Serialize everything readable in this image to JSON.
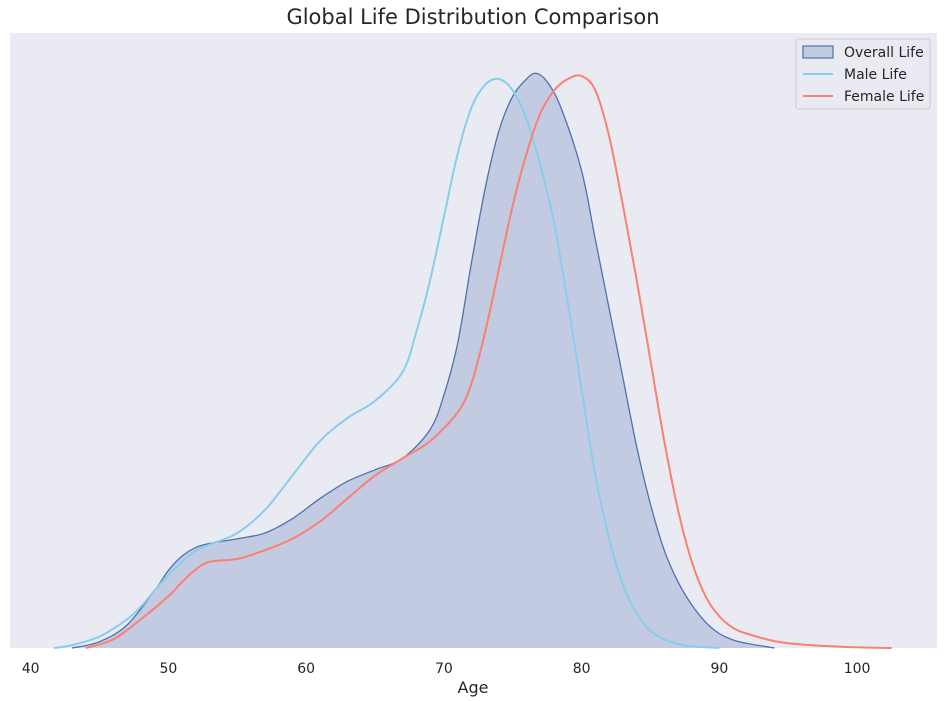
{
  "chart_data": {
    "type": "area",
    "title": "Global Life Distribution Comparison",
    "xlabel": "Age",
    "ylabel": "",
    "xlim": [
      38.5,
      105.8
    ],
    "ylim": [
      0,
      1.07
    ],
    "xticks": [
      40,
      50,
      60,
      70,
      80,
      90,
      100
    ],
    "grid": false,
    "legend": "top-right",
    "colors": {
      "background": "#eaeaf2",
      "overall_fill": "#c3cbe3",
      "overall_line": "#4c72b0",
      "male": "#87ceeb",
      "female": "#fa8072"
    },
    "series": [
      {
        "name": "Overall Life",
        "style": "filled",
        "x": [
          43,
          45,
          47,
          49,
          50,
          51,
          52,
          53,
          55,
          57,
          59,
          61,
          63,
          65,
          67,
          69,
          70,
          71,
          72,
          73,
          74,
          75,
          76,
          76.7,
          77.5,
          78.5,
          80,
          81,
          82,
          83,
          84,
          85,
          86,
          87,
          88,
          89,
          90,
          91,
          92,
          94
        ],
        "y": [
          0.0,
          0.011,
          0.04,
          0.1,
          0.135,
          0.16,
          0.175,
          0.182,
          0.19,
          0.2,
          0.225,
          0.26,
          0.29,
          0.31,
          0.33,
          0.38,
          0.44,
          0.53,
          0.67,
          0.8,
          0.9,
          0.96,
          0.99,
          1.0,
          0.985,
          0.94,
          0.83,
          0.71,
          0.59,
          0.47,
          0.35,
          0.25,
          0.17,
          0.115,
          0.075,
          0.045,
          0.025,
          0.014,
          0.008,
          0.0
        ]
      },
      {
        "name": "Male Life",
        "style": "line",
        "x": [
          41.7,
          43,
          45,
          47,
          48,
          49,
          50,
          51,
          52,
          53,
          55,
          57,
          59,
          61,
          63,
          65,
          67,
          68,
          69,
          70,
          71,
          72,
          73,
          74,
          75,
          76,
          77,
          78,
          79,
          80,
          81,
          82,
          83,
          84,
          85,
          86,
          87,
          88,
          90
        ],
        "y": [
          0.0,
          0.005,
          0.02,
          0.05,
          0.072,
          0.1,
          0.127,
          0.15,
          0.17,
          0.18,
          0.2,
          0.24,
          0.3,
          0.36,
          0.4,
          0.43,
          0.48,
          0.55,
          0.64,
          0.75,
          0.86,
          0.94,
          0.98,
          0.99,
          0.97,
          0.92,
          0.84,
          0.74,
          0.6,
          0.45,
          0.3,
          0.19,
          0.11,
          0.06,
          0.03,
          0.015,
          0.007,
          0.003,
          0.0
        ]
      },
      {
        "name": "Female Life",
        "style": "line",
        "x": [
          44,
          46,
          48,
          50,
          51,
          52,
          53,
          55,
          57,
          59,
          61,
          63,
          65,
          67,
          69,
          71,
          72,
          73,
          74,
          75,
          76,
          77,
          78,
          79,
          80,
          81,
          82,
          83,
          84,
          85,
          86,
          87,
          88,
          89,
          90,
          91,
          92,
          94,
          96,
          99,
          102.5
        ],
        "y": [
          0.0,
          0.015,
          0.05,
          0.09,
          0.115,
          0.137,
          0.15,
          0.155,
          0.17,
          0.19,
          0.22,
          0.26,
          0.3,
          0.33,
          0.36,
          0.41,
          0.46,
          0.55,
          0.66,
          0.77,
          0.86,
          0.93,
          0.97,
          0.99,
          0.995,
          0.97,
          0.89,
          0.77,
          0.64,
          0.5,
          0.36,
          0.24,
          0.15,
          0.09,
          0.055,
          0.035,
          0.025,
          0.012,
          0.006,
          0.002,
          0.0
        ]
      }
    ]
  }
}
